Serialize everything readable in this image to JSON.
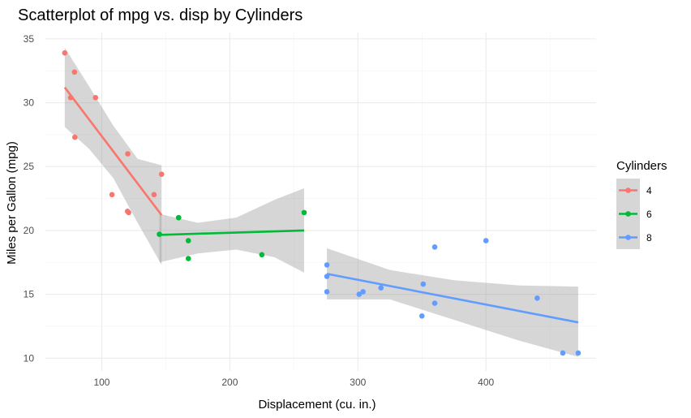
{
  "chart_data": {
    "type": "scatter",
    "title": "Scatterplot of mpg vs. disp by Cylinders",
    "xlabel": "Displacement (cu. in.)",
    "ylabel": "Miles per Gallon (mpg)",
    "xlim": [
      56,
      486
    ],
    "ylim": [
      9,
      35.5
    ],
    "xticks": [
      100,
      200,
      300,
      400
    ],
    "yticks": [
      10,
      15,
      20,
      25,
      30,
      35
    ],
    "grid": true,
    "legend": {
      "title": "Cylinders",
      "position": "right"
    },
    "series": [
      {
        "name": "4",
        "color": "#F8766D",
        "points": [
          {
            "x": 71.1,
            "y": 33.9
          },
          {
            "x": 75.7,
            "y": 30.4
          },
          {
            "x": 78.7,
            "y": 32.4
          },
          {
            "x": 79.0,
            "y": 27.3
          },
          {
            "x": 95.1,
            "y": 30.4
          },
          {
            "x": 108.0,
            "y": 22.8
          },
          {
            "x": 120.1,
            "y": 21.5
          },
          {
            "x": 120.3,
            "y": 26.0
          },
          {
            "x": 121.0,
            "y": 21.4
          },
          {
            "x": 140.8,
            "y": 22.8
          },
          {
            "x": 146.7,
            "y": 24.4
          }
        ],
        "fit": {
          "x": [
            71.1,
            146.7
          ],
          "y": [
            31.2,
            21.2
          ]
        },
        "ci": {
          "x": [
            71.1,
            90,
            109,
            128,
            146.7
          ],
          "upper": [
            34.3,
            31.3,
            28.2,
            25.6,
            25.1
          ],
          "lower": [
            28.1,
            26.4,
            24.1,
            20.6,
            17.3
          ]
        }
      },
      {
        "name": "6",
        "color": "#00BA38",
        "points": [
          {
            "x": 145.0,
            "y": 19.7
          },
          {
            "x": 160.0,
            "y": 21.0
          },
          {
            "x": 160.0,
            "y": 21.0
          },
          {
            "x": 167.6,
            "y": 19.2
          },
          {
            "x": 167.6,
            "y": 17.8
          },
          {
            "x": 225.0,
            "y": 18.1
          },
          {
            "x": 258.0,
            "y": 21.4
          }
        ],
        "fit": {
          "x": [
            145.0,
            258.0
          ],
          "y": [
            19.65,
            20.0
          ]
        },
        "ci": {
          "x": [
            145.0,
            175,
            205,
            235,
            258.0
          ],
          "upper": [
            21.3,
            20.6,
            21.0,
            22.4,
            23.3
          ],
          "lower": [
            17.5,
            18.2,
            18.5,
            17.9,
            16.7
          ]
        }
      },
      {
        "name": "8",
        "color": "#619CFF",
        "points": [
          {
            "x": 275.8,
            "y": 16.4
          },
          {
            "x": 275.8,
            "y": 17.3
          },
          {
            "x": 275.8,
            "y": 15.2
          },
          {
            "x": 301.0,
            "y": 15.0
          },
          {
            "x": 304.0,
            "y": 15.2
          },
          {
            "x": 318.0,
            "y": 15.5
          },
          {
            "x": 350.0,
            "y": 13.3
          },
          {
            "x": 351.0,
            "y": 15.8
          },
          {
            "x": 360.0,
            "y": 18.7
          },
          {
            "x": 360.0,
            "y": 14.3
          },
          {
            "x": 400.0,
            "y": 19.2
          },
          {
            "x": 440.0,
            "y": 14.7
          },
          {
            "x": 460.0,
            "y": 10.4
          },
          {
            "x": 472.0,
            "y": 10.4
          }
        ],
        "fit": {
          "x": [
            275.8,
            472.0
          ],
          "y": [
            16.6,
            12.8
          ]
        },
        "ci": {
          "x": [
            275.8,
            325,
            375,
            425,
            472.0
          ],
          "upper": [
            18.6,
            16.9,
            16.1,
            15.7,
            15.6
          ],
          "lower": [
            14.6,
            14.6,
            13.0,
            11.4,
            10.1
          ]
        }
      }
    ]
  }
}
